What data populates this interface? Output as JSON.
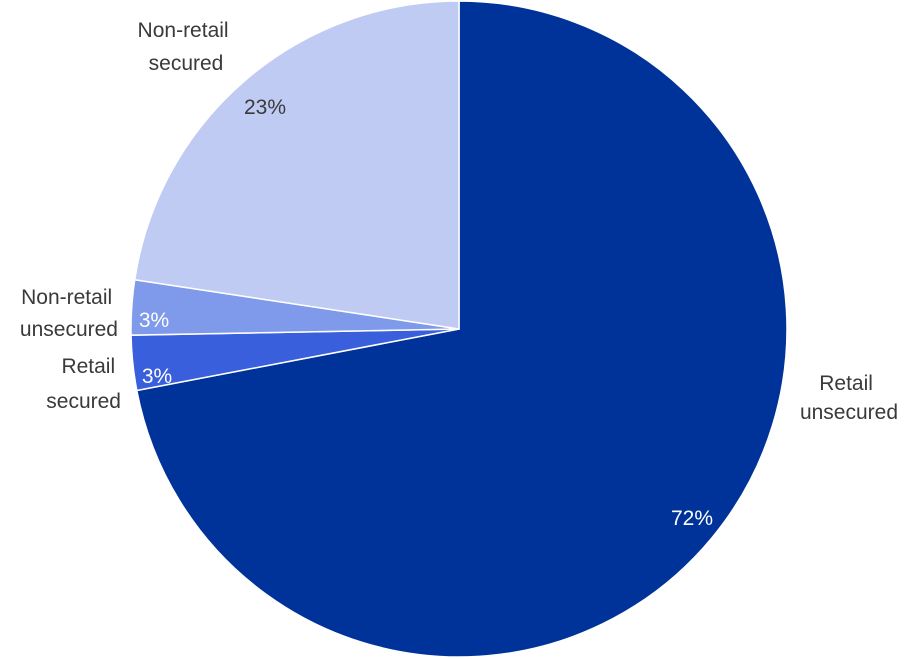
{
  "chart_data": {
    "type": "pie",
    "start": "12 o'clock",
    "direction": "clockwise",
    "slices": [
      {
        "category": "Retail unsecured",
        "label_lines": [
          "Retail",
          "unsecured"
        ],
        "value": 72,
        "value_label": "72%",
        "color": "#003399",
        "value_label_color": "#ffffff"
      },
      {
        "category": "Retail secured",
        "label_lines": [
          "Retail",
          "secured"
        ],
        "value": 2.7,
        "value_label": "3%",
        "color": "#3a5fdc",
        "value_label_color": "#ffffff"
      },
      {
        "category": "Non-retail unsecured",
        "label_lines": [
          "Non-retail",
          "unsecured"
        ],
        "value": 2.7,
        "value_label": "3%",
        "color": "#7f9aea",
        "value_label_color": "#ffffff"
      },
      {
        "category": "Non-retail secured",
        "label_lines": [
          "Non-retail",
          "secured"
        ],
        "value": 22.6,
        "value_label": "23%",
        "color": "#bfcbf3",
        "value_label_color": "#3a3a3a"
      }
    ]
  }
}
